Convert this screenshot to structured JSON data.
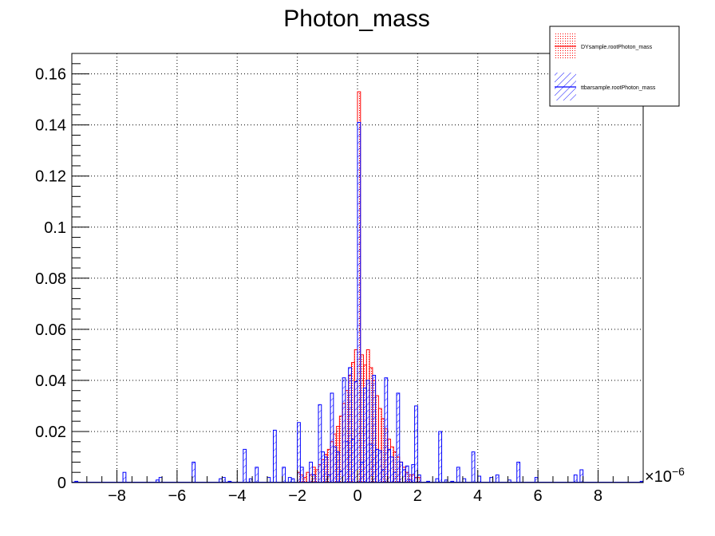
{
  "chart_data": {
    "type": "bar",
    "title": "Photon_mass",
    "xlabel": "",
    "ylabel": "",
    "x_multiplier": {
      "base": "×10",
      "exponent": "−6"
    },
    "xlim": [
      -9.5,
      9.5
    ],
    "ylim": [
      0,
      0.168
    ],
    "grid": true,
    "legend_position": "top-right",
    "x_tick_labels": [
      "−8",
      "−6",
      "−4",
      "−2",
      "0",
      "2",
      "4",
      "6",
      "8"
    ],
    "y_tick_labels": [
      "0",
      "0.02",
      "0.04",
      "0.06",
      "0.08",
      "0.1",
      "0.12",
      "0.14",
      "0.16"
    ],
    "bin_width": 0.1,
    "series": [
      {
        "name": "DYsample.rootPhoton_mass",
        "color": "#ff0000",
        "fill": "dots",
        "bins": [
          [
            -2.0,
            0.004
          ],
          [
            -1.9,
            0.003
          ],
          [
            -1.8,
            0.002
          ],
          [
            -1.7,
            0.004
          ],
          [
            -1.6,
            0.003
          ],
          [
            -1.5,
            0.006
          ],
          [
            -1.4,
            0.005
          ],
          [
            -1.3,
            0.007
          ],
          [
            -1.2,
            0.009
          ],
          [
            -1.1,
            0.011
          ],
          [
            -1.0,
            0.013
          ],
          [
            -0.9,
            0.016
          ],
          [
            -0.8,
            0.019
          ],
          [
            -0.7,
            0.022
          ],
          [
            -0.6,
            0.026
          ],
          [
            -0.5,
            0.031
          ],
          [
            -0.4,
            0.036
          ],
          [
            -0.3,
            0.042
          ],
          [
            -0.2,
            0.047
          ],
          [
            -0.1,
            0.052
          ],
          [
            0.0,
            0.153
          ],
          [
            0.1,
            0.05
          ],
          [
            0.2,
            0.046
          ],
          [
            0.3,
            0.052
          ],
          [
            0.4,
            0.045
          ],
          [
            0.5,
            0.04
          ],
          [
            0.6,
            0.034
          ],
          [
            0.7,
            0.029
          ],
          [
            0.8,
            0.025
          ],
          [
            0.9,
            0.021
          ],
          [
            1.0,
            0.017
          ],
          [
            1.1,
            0.014
          ],
          [
            1.2,
            0.012
          ],
          [
            1.3,
            0.01
          ],
          [
            1.4,
            0.008
          ],
          [
            1.5,
            0.006
          ],
          [
            1.6,
            0.004
          ],
          [
            1.7,
            0.003
          ],
          [
            1.8,
            0.003
          ],
          [
            1.9,
            0.002
          ],
          [
            2.0,
            0.002
          ]
        ]
      },
      {
        "name": "ttbarsample.rootPhoton_mass",
        "color": "#0000ff",
        "fill": "hatch",
        "bins": [
          [
            -9.4,
            0.0005
          ],
          [
            -7.8,
            0.004
          ],
          [
            -6.7,
            0.001
          ],
          [
            -6.6,
            0.002
          ],
          [
            -5.5,
            0.008
          ],
          [
            -4.6,
            0.0015
          ],
          [
            -4.5,
            0.002
          ],
          [
            -4.3,
            0.0005
          ],
          [
            -3.8,
            0.013
          ],
          [
            -3.6,
            0.0015
          ],
          [
            -3.4,
            0.006
          ],
          [
            -3.0,
            0.002
          ],
          [
            -2.8,
            0.0205
          ],
          [
            -2.5,
            0.006
          ],
          [
            -2.3,
            0.002
          ],
          [
            -2.2,
            0.0015
          ],
          [
            -2.0,
            0.0235
          ],
          [
            -1.9,
            0.006
          ],
          [
            -1.6,
            0.008
          ],
          [
            -1.5,
            0.003
          ],
          [
            -1.3,
            0.0305
          ],
          [
            -1.2,
            0.012
          ],
          [
            -1.1,
            0.01
          ],
          [
            -1.0,
            0.003
          ],
          [
            -0.9,
            0.035
          ],
          [
            -0.8,
            0.014
          ],
          [
            -0.7,
            0.012
          ],
          [
            -0.6,
            0.0045
          ],
          [
            -0.5,
            0.041
          ],
          [
            -0.4,
            0.016
          ],
          [
            -0.3,
            0.045
          ],
          [
            -0.2,
            0.017
          ],
          [
            -0.1,
            0.0395
          ],
          [
            0.0,
            0.141
          ],
          [
            0.1,
            0.008
          ],
          [
            0.2,
            0.037
          ],
          [
            0.3,
            0.04
          ],
          [
            0.4,
            0.015
          ],
          [
            0.5,
            0.042
          ],
          [
            0.6,
            0.013
          ],
          [
            0.7,
            0.0125
          ],
          [
            0.8,
            0.005
          ],
          [
            0.9,
            0.041
          ],
          [
            1.0,
            0.013
          ],
          [
            1.1,
            0.01
          ],
          [
            1.2,
            0.004
          ],
          [
            1.3,
            0.035
          ],
          [
            1.4,
            0.008
          ],
          [
            1.5,
            0.005
          ],
          [
            1.6,
            0.0065
          ],
          [
            1.7,
            0.001
          ],
          [
            1.8,
            0.007
          ],
          [
            1.9,
            0.03
          ],
          [
            2.0,
            0.003
          ],
          [
            2.3,
            0.0005
          ],
          [
            2.6,
            0.0015
          ],
          [
            2.7,
            0.02
          ],
          [
            2.9,
            0.001
          ],
          [
            3.1,
            0.0005
          ],
          [
            3.3,
            0.006
          ],
          [
            3.5,
            0.0015
          ],
          [
            3.8,
            0.012
          ],
          [
            4.0,
            0.0025
          ],
          [
            4.4,
            0.002
          ],
          [
            4.6,
            0.003
          ],
          [
            5.0,
            0.001
          ],
          [
            5.3,
            0.008
          ],
          [
            5.9,
            0.002
          ],
          [
            7.2,
            0.003
          ],
          [
            7.4,
            0.005
          ],
          [
            9.4,
            0.0005
          ]
        ]
      }
    ]
  }
}
